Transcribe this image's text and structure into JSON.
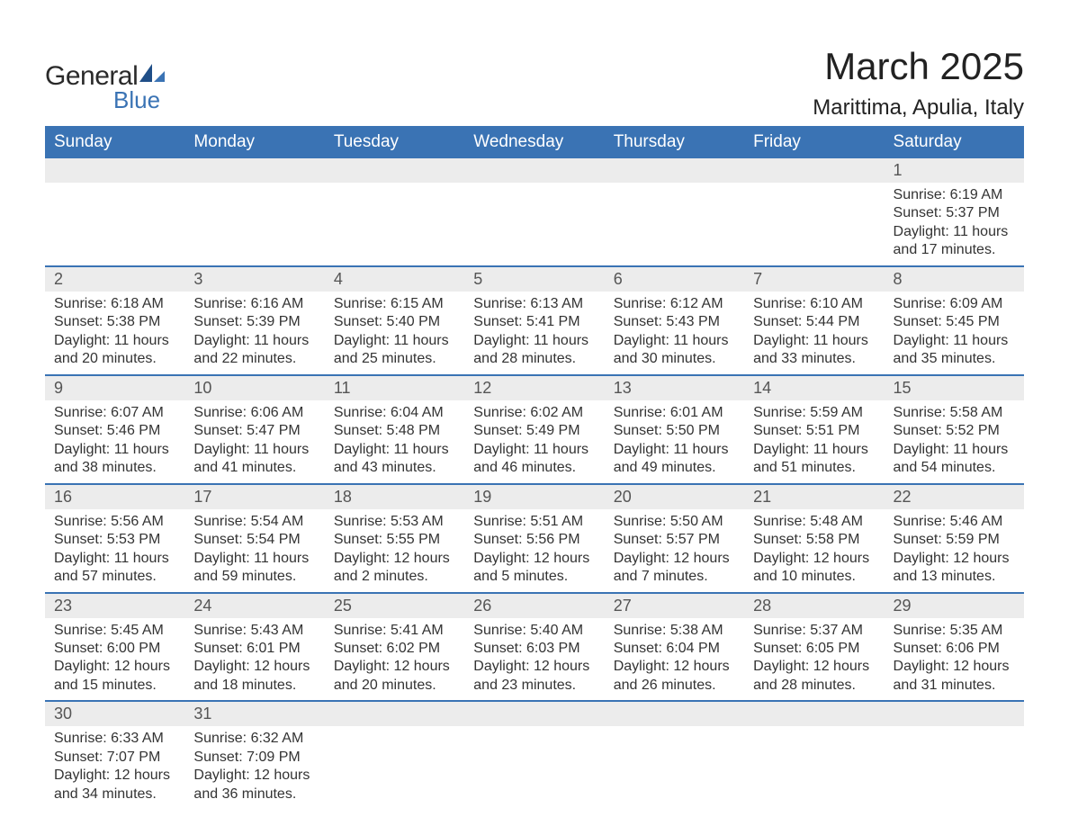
{
  "logo": {
    "general": "General",
    "blue": "Blue"
  },
  "title": "March 2025",
  "location": "Marittima, Apulia, Italy",
  "colors": {
    "header_bg": "#3a73b4",
    "header_text": "#ffffff",
    "daynum_bg": "#ececec",
    "row_border": "#3a73b4",
    "body_text": "#333333",
    "logo_blue": "#3a73b4"
  },
  "fonts": {
    "title_size_pt": 32,
    "location_size_pt": 18,
    "header_size_pt": 14,
    "daynum_size_pt": 14,
    "detail_size_pt": 12
  },
  "layout": {
    "cols": 7,
    "weeks": 6
  },
  "weekdays": [
    "Sunday",
    "Monday",
    "Tuesday",
    "Wednesday",
    "Thursday",
    "Friday",
    "Saturday"
  ],
  "labels": {
    "sunrise": "Sunrise:",
    "sunset": "Sunset:",
    "daylight": "Daylight:",
    "hours": "hours",
    "and": "and",
    "minutes": "minutes."
  },
  "grid": [
    [
      null,
      null,
      null,
      null,
      null,
      null,
      {
        "n": 1,
        "sr": "6:19 AM",
        "ss": "5:37 PM",
        "dl": "11 hours and 17 minutes."
      }
    ],
    [
      {
        "n": 2,
        "sr": "6:18 AM",
        "ss": "5:38 PM",
        "dl": "11 hours and 20 minutes."
      },
      {
        "n": 3,
        "sr": "6:16 AM",
        "ss": "5:39 PM",
        "dl": "11 hours and 22 minutes."
      },
      {
        "n": 4,
        "sr": "6:15 AM",
        "ss": "5:40 PM",
        "dl": "11 hours and 25 minutes."
      },
      {
        "n": 5,
        "sr": "6:13 AM",
        "ss": "5:41 PM",
        "dl": "11 hours and 28 minutes."
      },
      {
        "n": 6,
        "sr": "6:12 AM",
        "ss": "5:43 PM",
        "dl": "11 hours and 30 minutes."
      },
      {
        "n": 7,
        "sr": "6:10 AM",
        "ss": "5:44 PM",
        "dl": "11 hours and 33 minutes."
      },
      {
        "n": 8,
        "sr": "6:09 AM",
        "ss": "5:45 PM",
        "dl": "11 hours and 35 minutes."
      }
    ],
    [
      {
        "n": 9,
        "sr": "6:07 AM",
        "ss": "5:46 PM",
        "dl": "11 hours and 38 minutes."
      },
      {
        "n": 10,
        "sr": "6:06 AM",
        "ss": "5:47 PM",
        "dl": "11 hours and 41 minutes."
      },
      {
        "n": 11,
        "sr": "6:04 AM",
        "ss": "5:48 PM",
        "dl": "11 hours and 43 minutes."
      },
      {
        "n": 12,
        "sr": "6:02 AM",
        "ss": "5:49 PM",
        "dl": "11 hours and 46 minutes."
      },
      {
        "n": 13,
        "sr": "6:01 AM",
        "ss": "5:50 PM",
        "dl": "11 hours and 49 minutes."
      },
      {
        "n": 14,
        "sr": "5:59 AM",
        "ss": "5:51 PM",
        "dl": "11 hours and 51 minutes."
      },
      {
        "n": 15,
        "sr": "5:58 AM",
        "ss": "5:52 PM",
        "dl": "11 hours and 54 minutes."
      }
    ],
    [
      {
        "n": 16,
        "sr": "5:56 AM",
        "ss": "5:53 PM",
        "dl": "11 hours and 57 minutes."
      },
      {
        "n": 17,
        "sr": "5:54 AM",
        "ss": "5:54 PM",
        "dl": "11 hours and 59 minutes."
      },
      {
        "n": 18,
        "sr": "5:53 AM",
        "ss": "5:55 PM",
        "dl": "12 hours and 2 minutes."
      },
      {
        "n": 19,
        "sr": "5:51 AM",
        "ss": "5:56 PM",
        "dl": "12 hours and 5 minutes."
      },
      {
        "n": 20,
        "sr": "5:50 AM",
        "ss": "5:57 PM",
        "dl": "12 hours and 7 minutes."
      },
      {
        "n": 21,
        "sr": "5:48 AM",
        "ss": "5:58 PM",
        "dl": "12 hours and 10 minutes."
      },
      {
        "n": 22,
        "sr": "5:46 AM",
        "ss": "5:59 PM",
        "dl": "12 hours and 13 minutes."
      }
    ],
    [
      {
        "n": 23,
        "sr": "5:45 AM",
        "ss": "6:00 PM",
        "dl": "12 hours and 15 minutes."
      },
      {
        "n": 24,
        "sr": "5:43 AM",
        "ss": "6:01 PM",
        "dl": "12 hours and 18 minutes."
      },
      {
        "n": 25,
        "sr": "5:41 AM",
        "ss": "6:02 PM",
        "dl": "12 hours and 20 minutes."
      },
      {
        "n": 26,
        "sr": "5:40 AM",
        "ss": "6:03 PM",
        "dl": "12 hours and 23 minutes."
      },
      {
        "n": 27,
        "sr": "5:38 AM",
        "ss": "6:04 PM",
        "dl": "12 hours and 26 minutes."
      },
      {
        "n": 28,
        "sr": "5:37 AM",
        "ss": "6:05 PM",
        "dl": "12 hours and 28 minutes."
      },
      {
        "n": 29,
        "sr": "5:35 AM",
        "ss": "6:06 PM",
        "dl": "12 hours and 31 minutes."
      }
    ],
    [
      {
        "n": 30,
        "sr": "6:33 AM",
        "ss": "7:07 PM",
        "dl": "12 hours and 34 minutes."
      },
      {
        "n": 31,
        "sr": "6:32 AM",
        "ss": "7:09 PM",
        "dl": "12 hours and 36 minutes."
      },
      null,
      null,
      null,
      null,
      null
    ]
  ]
}
